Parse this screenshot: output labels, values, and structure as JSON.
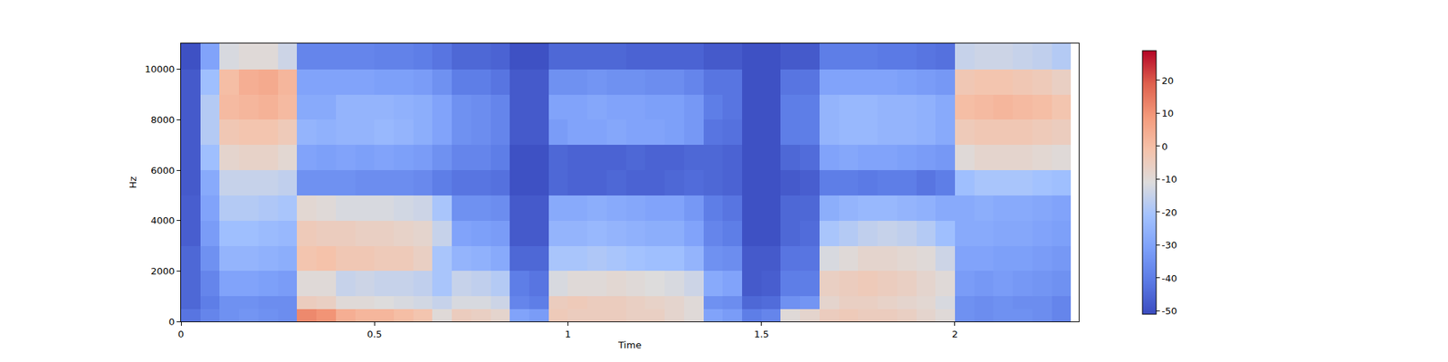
{
  "chart_data": {
    "type": "heatmap",
    "x_label": "Time",
    "y_label": "Hz",
    "xlim": [
      0,
      2.32
    ],
    "ylim": [
      0,
      11025
    ],
    "xticks": [
      0,
      0.5,
      1,
      1.5,
      2
    ],
    "yticks": [
      0,
      2000,
      4000,
      6000,
      8000,
      10000
    ],
    "zlim": [
      -51,
      29
    ],
    "zticks": [
      -50,
      -40,
      -30,
      -20,
      -10,
      0,
      10,
      20
    ],
    "x": [
      0,
      0.05,
      0.1,
      0.15,
      0.2,
      0.25,
      0.3,
      0.35,
      0.4,
      0.45,
      0.5,
      0.55,
      0.6,
      0.65,
      0.7,
      0.75,
      0.8,
      0.85,
      0.9,
      0.95,
      1,
      1.05,
      1.1,
      1.15,
      1.2,
      1.25,
      1.3,
      1.35,
      1.4,
      1.45,
      1.5,
      1.55,
      1.6,
      1.65,
      1.7,
      1.75,
      1.8,
      1.85,
      1.9,
      1.95,
      2,
      2.05,
      2.1,
      2.15,
      2.2,
      2.25,
      2.3
    ],
    "y": [
      0,
      500,
      1000,
      2000,
      3000,
      4000,
      5000,
      6000,
      7000,
      8000,
      9000,
      10000,
      11025
    ],
    "z": [
      [
        -42,
        -38,
        -35,
        -34,
        -35,
        -36,
        12,
        10,
        4,
        2,
        2,
        0,
        -2,
        -10,
        -5,
        -6,
        -8,
        -30,
        -32,
        -4,
        -5,
        -5,
        -5,
        -6,
        -6,
        -8,
        -10,
        -30,
        -32,
        -40,
        -38,
        -10,
        -8,
        -5,
        -4,
        -5,
        -5,
        -6,
        -8,
        -10,
        -35,
        -36,
        -35,
        -35,
        -36,
        -38
      ],
      [
        -45,
        -40,
        -35,
        -35,
        -36,
        -36,
        -5,
        -6,
        -10,
        -10,
        -11,
        -12,
        -13,
        -15,
        -12,
        -12,
        -14,
        -38,
        -40,
        -5,
        -4,
        -5,
        -5,
        -6,
        -7,
        -8,
        -10,
        -35,
        -36,
        -45,
        -44,
        -35,
        -34,
        -8,
        -6,
        -6,
        -7,
        -8,
        -9,
        -12,
        -35,
        -36,
        -35,
        -36,
        -36,
        -38
      ],
      [
        -45,
        -38,
        -30,
        -30,
        -31,
        -32,
        -10,
        -10,
        -15,
        -14,
        -15,
        -15,
        -16,
        -20,
        -15,
        -16,
        -18,
        -40,
        -42,
        -12,
        -10,
        -10,
        -9,
        -10,
        -11,
        -12,
        -14,
        -28,
        -30,
        -48,
        -47,
        -40,
        -40,
        -6,
        -5,
        -4,
        -5,
        -6,
        -8,
        -10,
        -32,
        -33,
        -32,
        -33,
        -34,
        -35
      ],
      [
        -45,
        -35,
        -25,
        -25,
        -26,
        -27,
        -2,
        -1,
        -3,
        -3,
        -4,
        -4,
        -6,
        -20,
        -25,
        -26,
        -28,
        -45,
        -45,
        -20,
        -20,
        -19,
        -20,
        -21,
        -22,
        -22,
        -25,
        -35,
        -36,
        -48,
        -48,
        -42,
        -42,
        -12,
        -10,
        -8,
        -8,
        -9,
        -10,
        -14,
        -30,
        -30,
        -31,
        -31,
        -32,
        -33
      ],
      [
        -47,
        -32,
        -22,
        -22,
        -23,
        -24,
        -4,
        -5,
        -5,
        -6,
        -6,
        -7,
        -8,
        -15,
        -30,
        -31,
        -32,
        -48,
        -48,
        -25,
        -25,
        -24,
        -25,
        -26,
        -27,
        -27,
        -30,
        -38,
        -40,
        -50,
        -50,
        -45,
        -44,
        -20,
        -18,
        -16,
        -15,
        -16,
        -18,
        -22,
        -28,
        -28,
        -29,
        -29,
        -30,
        -31
      ],
      [
        -47,
        -30,
        -18,
        -18,
        -19,
        -20,
        -9,
        -10,
        -12,
        -12,
        -12,
        -13,
        -14,
        -20,
        -35,
        -35,
        -36,
        -48,
        -48,
        -28,
        -28,
        -27,
        -28,
        -29,
        -30,
        -30,
        -33,
        -40,
        -42,
        -50,
        -50,
        -45,
        -45,
        -27,
        -25,
        -24,
        -24,
        -25,
        -26,
        -28,
        -28,
        -27,
        -28,
        -28,
        -29,
        -30
      ],
      [
        -48,
        -28,
        -15,
        -15,
        -15,
        -16,
        -35,
        -35,
        -35,
        -36,
        -36,
        -36,
        -37,
        -40,
        -42,
        -42,
        -43,
        -50,
        -50,
        -45,
        -46,
        -46,
        -45,
        -46,
        -46,
        -45,
        -44,
        -45,
        -46,
        -50,
        -50,
        -48,
        -47,
        -40,
        -40,
        -41,
        -40,
        -40,
        -42,
        -40,
        -22,
        -20,
        -20,
        -20,
        -21,
        -22
      ],
      [
        -48,
        -22,
        -8,
        -7,
        -7,
        -9,
        -30,
        -31,
        -30,
        -31,
        -30,
        -31,
        -32,
        -35,
        -38,
        -38,
        -40,
        -50,
        -50,
        -45,
        -46,
        -46,
        -46,
        -45,
        -46,
        -46,
        -45,
        -45,
        -46,
        -50,
        -50,
        -45,
        -44,
        -30,
        -29,
        -30,
        -30,
        -31,
        -32,
        -33,
        -10,
        -8,
        -8,
        -8,
        -9,
        -10
      ],
      [
        -48,
        -18,
        -3,
        -2,
        -2,
        -4,
        -25,
        -26,
        -25,
        -25,
        -24,
        -25,
        -27,
        -30,
        -35,
        -36,
        -38,
        -48,
        -48,
        -32,
        -30,
        -30,
        -29,
        -30,
        -30,
        -31,
        -33,
        -42,
        -43,
        -50,
        -50,
        -40,
        -40,
        -25,
        -24,
        -24,
        -25,
        -25,
        -26,
        -28,
        -4,
        -3,
        -3,
        -3,
        -4,
        -5
      ],
      [
        -48,
        -18,
        1,
        2,
        3,
        1,
        -28,
        -28,
        -25,
        -25,
        -25,
        -26,
        -27,
        -30,
        -35,
        -36,
        -38,
        -48,
        -48,
        -30,
        -30,
        -29,
        -30,
        -30,
        -31,
        -31,
        -33,
        -40,
        -42,
        -50,
        -50,
        -40,
        -40,
        -25,
        -24,
        -24,
        -25,
        -25,
        -26,
        -28,
        0,
        1,
        2,
        1,
        0,
        -2
      ],
      [
        -48,
        -22,
        0,
        4,
        5,
        2,
        -30,
        -30,
        -30,
        -30,
        -31,
        -31,
        -32,
        -35,
        -40,
        -40,
        -42,
        -48,
        -48,
        -35,
        -35,
        -34,
        -35,
        -35,
        -36,
        -36,
        -38,
        -42,
        -42,
        -50,
        -50,
        -42,
        -42,
        -30,
        -30,
        -30,
        -30,
        -31,
        -32,
        -33,
        -3,
        -2,
        -2,
        -3,
        -4,
        -6
      ],
      [
        -50,
        -30,
        -12,
        -10,
        -10,
        -14,
        -38,
        -38,
        -38,
        -38,
        -39,
        -39,
        -40,
        -42,
        -45,
        -45,
        -46,
        -50,
        -50,
        -45,
        -45,
        -45,
        -45,
        -46,
        -46,
        -46,
        -46,
        -48,
        -48,
        -50,
        -50,
        -48,
        -48,
        -40,
        -40,
        -40,
        -41,
        -41,
        -42,
        -43,
        -15,
        -14,
        -14,
        -15,
        -16,
        -18
      ]
    ]
  }
}
